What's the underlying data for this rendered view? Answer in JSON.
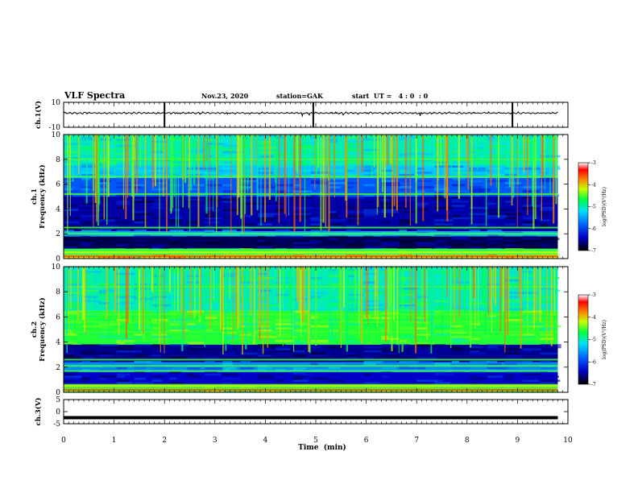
{
  "header": {
    "title": "VLF Spectra",
    "date": "Nov.23, 2020",
    "station": "station=GAK",
    "start_ut": "start  UT =   4 : 0  : 0"
  },
  "colors": {
    "spectrum_lo": "#00001a",
    "spectrum_mid": "#00c8ff",
    "spectrum_hi": "#ffff00",
    "line_color": "#000000"
  },
  "chart_data": [
    {
      "type": "line",
      "panel": "ch1-waveform",
      "ylabel": "ch.1(V)",
      "ylim": [
        -10,
        10
      ],
      "y_ticks": [
        "10",
        "-10"
      ],
      "xlim": [
        0,
        10
      ],
      "series": [
        {
          "x_range": [
            0,
            9.8
          ],
          "approx_level": 1.5,
          "noise_band": [
            0.3,
            2.5
          ]
        }
      ]
    },
    {
      "type": "heatmap",
      "panel": "ch1-spectrogram",
      "ylabel": "ch.1\nFrequency (kHz)",
      "ylim": [
        0,
        10
      ],
      "y_ticks": [
        "0",
        "2",
        "4",
        "6",
        "8",
        "10"
      ],
      "xlim": [
        0,
        10
      ],
      "data_x_range": [
        0,
        9.8
      ],
      "bands_khz": [
        {
          "from": 0,
          "to": 0.3,
          "level": 0.72
        },
        {
          "from": 0.3,
          "to": 0.8,
          "level": 0.55
        },
        {
          "from": 0.8,
          "to": 1.8,
          "level": 0.05
        },
        {
          "from": 1.8,
          "to": 2.2,
          "level": 0.4
        },
        {
          "from": 2.2,
          "to": 5.0,
          "level": 0.12
        },
        {
          "from": 5.0,
          "to": 6.5,
          "level": 0.28
        },
        {
          "from": 6.5,
          "to": 7.5,
          "level": 0.42
        },
        {
          "from": 7.5,
          "to": 10,
          "level": 0.5
        }
      ],
      "colorbar": {
        "label": "log(PSD)(V²/Hz)",
        "range": [
          -7,
          -3
        ],
        "ticks": [
          "-3",
          "-4",
          "-5",
          "-6",
          "-7"
        ]
      }
    },
    {
      "type": "heatmap",
      "panel": "ch2-spectrogram",
      "ylabel": "ch.2\nFrequency (kHz)",
      "ylim": [
        0,
        10
      ],
      "y_ticks": [
        "0",
        "2",
        "4",
        "6",
        "8",
        "10"
      ],
      "xlim": [
        0,
        10
      ],
      "data_x_range": [
        0,
        9.8
      ],
      "bands_khz": [
        {
          "from": 0,
          "to": 0.4,
          "level": 0.6
        },
        {
          "from": 0.4,
          "to": 1.6,
          "level": 0.15
        },
        {
          "from": 1.6,
          "to": 2.4,
          "level": 0.35
        },
        {
          "from": 2.4,
          "to": 3.8,
          "level": 0.1
        },
        {
          "from": 3.8,
          "to": 6.5,
          "level": 0.6
        },
        {
          "from": 6.5,
          "to": 10,
          "level": 0.5
        }
      ],
      "colorbar": {
        "label": "log(PSD)(V²/Hz)",
        "range": [
          -7,
          -3
        ],
        "ticks": [
          "-3",
          "-4",
          "-5",
          "-6",
          "-7"
        ]
      }
    },
    {
      "type": "line",
      "panel": "ch3-waveform",
      "ylabel": "ch.3(V)",
      "ylim": [
        -5,
        5
      ],
      "y_ticks": [
        "5",
        "0",
        "-5"
      ],
      "xlim": [
        0,
        10
      ],
      "series": [
        {
          "x_range": [
            0,
            9.8
          ],
          "approx_level": -2.5
        }
      ]
    }
  ],
  "x_axis": {
    "label": "Time  (min)",
    "ticks": [
      "0",
      "1",
      "2",
      "3",
      "4",
      "5",
      "6",
      "7",
      "8",
      "9",
      "10"
    ]
  }
}
